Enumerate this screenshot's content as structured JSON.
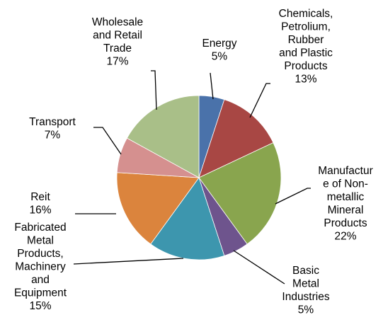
{
  "chart_data": {
    "type": "pie",
    "title": "",
    "slices": [
      {
        "label": [
          "Energy",
          "5%"
        ],
        "value": 5,
        "color": "#4a72aa"
      },
      {
        "label": [
          "Chemicals,",
          "Petrolium,",
          "Rubber",
          "and Plastic",
          "Products",
          "13%"
        ],
        "value": 13,
        "color": "#a84744"
      },
      {
        "label": [
          "Manufactur",
          "e of Non-",
          "metallic",
          "Mineral",
          "Products",
          "22%"
        ],
        "value": 22,
        "color": "#89a54e"
      },
      {
        "label": [
          "Basic",
          "Metal",
          "Industries",
          "5%"
        ],
        "value": 5,
        "color": "#6e548d"
      },
      {
        "label": [
          "Fabricated",
          "Metal",
          "Products,",
          "Machinery",
          "and",
          "Equipment",
          "15%"
        ],
        "value": 15,
        "color": "#3d96ae"
      },
      {
        "label": [
          "Reit",
          "16%"
        ],
        "value": 16,
        "color": "#db843d"
      },
      {
        "label": [
          "Transport",
          "7%"
        ],
        "value": 7,
        "color": "#d5908f"
      },
      {
        "label": [
          "Wholesale",
          "and Retail",
          "Trade",
          "17%"
        ],
        "value": 17,
        "color": "#a9bf88"
      }
    ]
  }
}
